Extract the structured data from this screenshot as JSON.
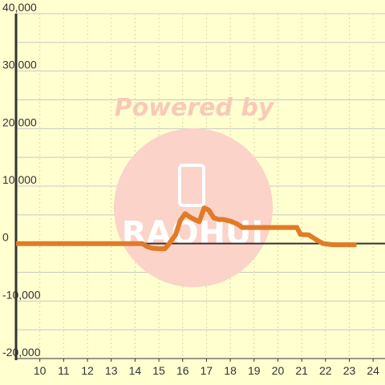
{
  "colors": {
    "background": "#ffffd0",
    "line": "#e07b28",
    "grid_h": "#c8c8c8",
    "grid_v": "#d8d8a8",
    "zero_line": "#333333",
    "axis": "#333333",
    "watermark_circle": "#fbd3c9"
  },
  "watermark": {
    "text": "Powered by",
    "subtext": "RAOHUI"
  },
  "chart_data": {
    "type": "line",
    "xlim": [
      9,
      24.5
    ],
    "ylim": [
      -20000,
      40000
    ],
    "x_ticks": [
      10,
      11,
      12,
      13,
      14,
      15,
      16,
      17,
      18,
      19,
      20,
      21,
      22,
      23,
      24
    ],
    "y_ticks": [
      -20000,
      -10000,
      0,
      10000,
      20000,
      30000,
      40000
    ],
    "y_tick_labels": [
      "-20,000",
      "-10,000",
      "0",
      "10,000",
      "20,000",
      "30,000",
      "40,000"
    ],
    "grid": true,
    "series": [
      {
        "x": [
          9,
          14.3,
          14.5,
          14.7,
          15.0,
          15.25,
          15.4,
          15.7,
          15.9,
          16.1,
          16.35,
          16.7,
          16.9,
          17.1,
          17.3,
          17.5,
          17.7,
          18.0,
          18.3,
          18.5,
          19.0,
          20.0,
          20.8,
          20.95,
          21.3,
          21.6,
          21.9,
          22.3,
          23.3
        ],
        "y": [
          0,
          0,
          -500,
          -800,
          -900,
          -900,
          -200,
          1500,
          4000,
          5200,
          4500,
          3800,
          6200,
          5800,
          4500,
          4200,
          4200,
          3900,
          3400,
          2800,
          2800,
          2800,
          2800,
          1600,
          1500,
          700,
          0,
          -200,
          -200
        ]
      }
    ]
  }
}
